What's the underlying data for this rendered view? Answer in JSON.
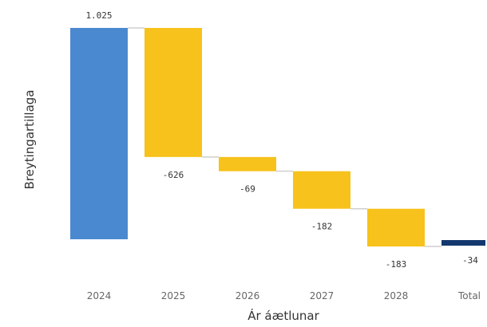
{
  "chart_data": {
    "type": "waterfall",
    "xlabel": "Ár áætlunar",
    "ylabel": "Breytingartillaga",
    "categories": [
      "2024",
      "2025",
      "2026",
      "2027",
      "2028",
      "Total"
    ],
    "values": [
      1025,
      -626,
      -69,
      -182,
      -183,
      -34
    ],
    "value_labels": [
      "1.025",
      "-626",
      "-69",
      "-182",
      "-183",
      "-34"
    ],
    "kinds": [
      "start",
      "delta",
      "delta",
      "delta",
      "delta",
      "total"
    ],
    "ylim": [
      0,
      1025
    ],
    "grid": false,
    "legend": "none",
    "colors": {
      "start": "#4a89d0",
      "decrease": "#f7c21b",
      "total": "#13386e",
      "connector": "#cfcfcf"
    }
  }
}
